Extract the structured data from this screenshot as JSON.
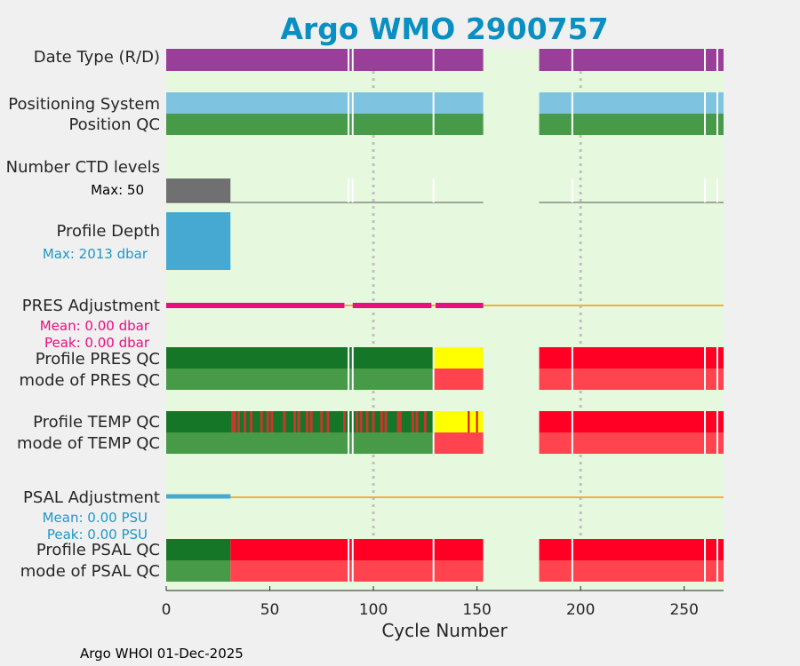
{
  "colors": {
    "background": "#f0f0f0",
    "plot_bg": "#e6f8de",
    "title": "#0a8fc3",
    "label": "#262626",
    "purple": "#993f99",
    "light_blue": "#7ec3df",
    "green": "#479a47",
    "dark_green": "#157628",
    "gray": "#707070",
    "cyan": "#45a9d2",
    "magenta": "#e6107f",
    "orange": "#f0b040",
    "yellow": "#ffff00",
    "red": "#ff0024",
    "light_red": "#ff4450",
    "sep": "#ffffff",
    "gridline": "#c0c0c0"
  },
  "chart_data": {
    "type": "bar",
    "title": "Argo WMO 2900757",
    "xlabel": "Cycle Number",
    "xlim": [
      0,
      269
    ],
    "xticks": [
      0,
      50,
      100,
      150,
      200,
      250
    ],
    "gridlines_x": [
      100,
      200
    ],
    "footer": "Argo WHOI 01-Dec-2025",
    "separators": [
      88,
      90,
      129,
      196,
      260,
      266
    ],
    "rows": [
      {
        "key": "date",
        "label": "Date Type (R/D)",
        "segments": [
          [
            0,
            153,
            "purple"
          ],
          [
            180,
            269,
            "purple"
          ]
        ]
      },
      {
        "key": "pos",
        "label": "Positioning System",
        "segments": [
          [
            0,
            153,
            "light_blue"
          ],
          [
            180,
            269,
            "light_blue"
          ]
        ]
      },
      {
        "key": "posqc",
        "label": "Position QC",
        "segments": [
          [
            0,
            153,
            "green"
          ],
          [
            180,
            269,
            "green"
          ]
        ]
      },
      {
        "key": "ctd",
        "label": "Number CTD levels",
        "sub": "Max: 50",
        "segments": [
          [
            0,
            31,
            "gray"
          ]
        ],
        "baseline": [
          [
            0,
            153
          ],
          [
            180,
            269
          ]
        ]
      },
      {
        "key": "depth",
        "label": "Profile Depth",
        "sub": "Max: 2013 dbar",
        "segments": [
          [
            0,
            31,
            "cyan"
          ]
        ]
      },
      {
        "key": "presadj",
        "label": "PRES Adjustment",
        "sub": "Mean: 0.00 dbar",
        "sub2": "Peak: 0.00 dbar"
      },
      {
        "key": "presqc",
        "label": "Profile PRES QC",
        "segments": [
          [
            0,
            129,
            "dark_green"
          ],
          [
            129,
            153,
            "yellow"
          ],
          [
            180,
            269,
            "red"
          ]
        ]
      },
      {
        "key": "presmode",
        "label": "mode of PRES QC",
        "segments": [
          [
            0,
            129,
            "green"
          ],
          [
            129,
            153,
            "light_red"
          ],
          [
            180,
            269,
            "light_red"
          ]
        ]
      },
      {
        "key": "tempqc",
        "label": "Profile TEMP QC",
        "segments": [
          [
            0,
            129,
            "dark_green"
          ],
          [
            129,
            153,
            "yellow"
          ],
          [
            180,
            269,
            "red"
          ]
        ],
        "marks": [
          32,
          33,
          35,
          38,
          41,
          46,
          49,
          51,
          57,
          62,
          64,
          68,
          70,
          75,
          78,
          86,
          92,
          94,
          97,
          100,
          104,
          106,
          112,
          113,
          119,
          121,
          125,
          146,
          150
        ]
      },
      {
        "key": "tempmode",
        "label": "mode of TEMP QC",
        "segments": [
          [
            0,
            129,
            "green"
          ],
          [
            129,
            153,
            "light_red"
          ],
          [
            180,
            269,
            "light_red"
          ]
        ]
      },
      {
        "key": "psaladj",
        "label": "PSAL Adjustment",
        "sub": "Mean: 0.00 PSU",
        "sub2": "Peak: 0.00 PSU"
      },
      {
        "key": "psalqc",
        "label": "Profile PSAL QC",
        "segments": [
          [
            0,
            31,
            "dark_green"
          ],
          [
            31,
            153,
            "red"
          ],
          [
            180,
            269,
            "red"
          ]
        ]
      },
      {
        "key": "psalmode",
        "label": "mode of PSAL QC",
        "segments": [
          [
            0,
            31,
            "green"
          ],
          [
            31,
            153,
            "light_red"
          ],
          [
            180,
            269,
            "light_red"
          ]
        ]
      }
    ]
  }
}
